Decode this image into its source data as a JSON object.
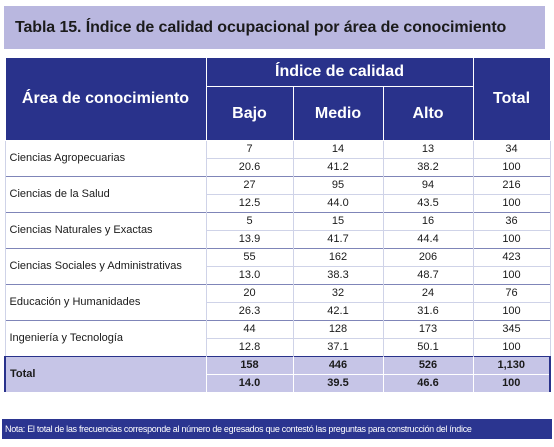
{
  "title": "Tabla 15. Índice de calidad ocupacional por área de conocimiento",
  "header": {
    "area": "Área de conocimiento",
    "group": "Índice de calidad",
    "bajo": "Bajo",
    "medio": "Medio",
    "alto": "Alto",
    "total": "Total"
  },
  "rows": [
    {
      "area": "Ciencias Agropecuarias",
      "freq": [
        "7",
        "14",
        "13",
        "34"
      ],
      "pct": [
        "20.6",
        "41.2",
        "38.2",
        "100"
      ]
    },
    {
      "area": "Ciencias de la Salud",
      "freq": [
        "27",
        "95",
        "94",
        "216"
      ],
      "pct": [
        "12.5",
        "44.0",
        "43.5",
        "100"
      ]
    },
    {
      "area": "Ciencias Naturales y Exactas",
      "freq": [
        "5",
        "15",
        "16",
        "36"
      ],
      "pct": [
        "13.9",
        "41.7",
        "44.4",
        "100"
      ]
    },
    {
      "area": "Ciencias Sociales y Administrativas",
      "freq": [
        "55",
        "162",
        "206",
        "423"
      ],
      "pct": [
        "13.0",
        "38.3",
        "48.7",
        "100"
      ]
    },
    {
      "area": "Educación y Humanidades",
      "freq": [
        "20",
        "32",
        "24",
        "76"
      ],
      "pct": [
        "26.3",
        "42.1",
        "31.6",
        "100"
      ]
    },
    {
      "area": "Ingeniería y Tecnología",
      "freq": [
        "44",
        "128",
        "173",
        "345"
      ],
      "pct": [
        "12.8",
        "37.1",
        "50.1",
        "100"
      ]
    }
  ],
  "total": {
    "label": "Total",
    "freq": [
      "158",
      "446",
      "526",
      "1,130"
    ],
    "pct": [
      "14.0",
      "39.5",
      "46.6",
      "100"
    ]
  },
  "note": "Nota: El total de las frecuencias corresponde al número de egresados que contestó las preguntas para construcción del índice"
}
